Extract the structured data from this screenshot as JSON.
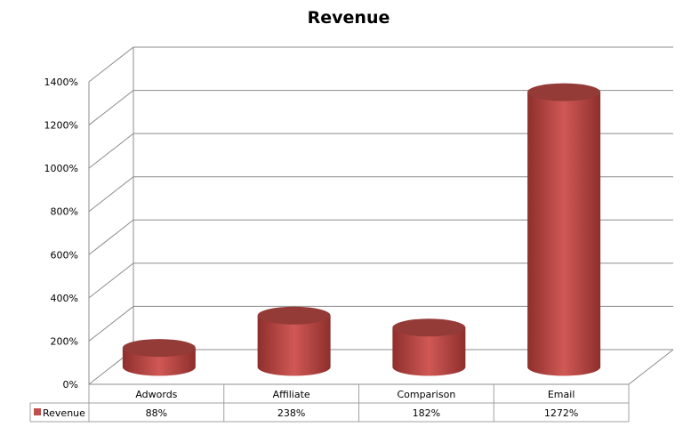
{
  "chart_data": {
    "type": "bar",
    "style": "3d-cylinder",
    "title": "Revenue",
    "categories": [
      "Adwords",
      "Affiliate",
      "Comparison",
      "Email"
    ],
    "series": [
      {
        "name": "Revenue",
        "values": [
          88,
          238,
          182,
          1272
        ],
        "labels": [
          "88%",
          "238%",
          "182%",
          "1272%"
        ],
        "color": "#c0504d"
      }
    ],
    "yticks": [
      "0%",
      "200%",
      "400%",
      "600%",
      "800%",
      "1000%",
      "1200%",
      "1400%"
    ],
    "ylim": [
      0,
      1400
    ],
    "grid": true,
    "legend": "data-table"
  }
}
